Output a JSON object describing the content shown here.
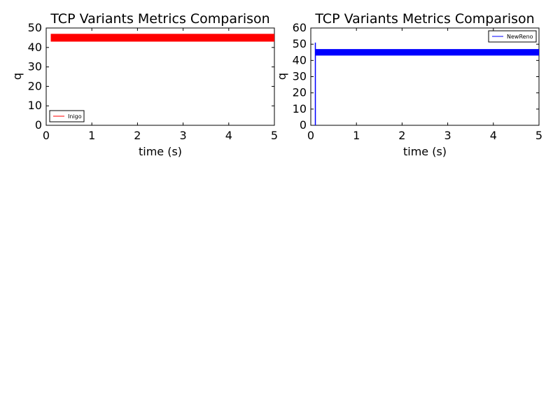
{
  "chart_data": [
    {
      "type": "line",
      "title": "TCP Variants Metrics Comparison",
      "xlabel": "time (s)",
      "ylabel": "q",
      "xlim": [
        0,
        5
      ],
      "ylim": [
        0,
        50
      ],
      "xticks": [
        "0",
        "1",
        "2",
        "3",
        "4",
        "5"
      ],
      "yticks": [
        "0",
        "10",
        "20",
        "30",
        "40",
        "50"
      ],
      "legend_position": "lower-left",
      "series": [
        {
          "name": "Inigo",
          "color": "#ff0000",
          "band_start_x": 0.1,
          "band_range_y": [
            43,
            47
          ]
        }
      ]
    },
    {
      "type": "line",
      "title": "TCP Variants Metrics Comparison",
      "xlabel": "time (s)",
      "ylabel": "q",
      "xlim": [
        0,
        5
      ],
      "ylim": [
        0,
        60
      ],
      "xticks": [
        "0",
        "1",
        "2",
        "3",
        "4",
        "5"
      ],
      "yticks": [
        "0",
        "10",
        "20",
        "30",
        "40",
        "50",
        "60"
      ],
      "legend_position": "top-right",
      "series": [
        {
          "name": "NewReno",
          "color": "#0000ff",
          "spike": {
            "x": 0.1,
            "y_from": 0,
            "y_to": 51
          },
          "band_start_x": 0.1,
          "band_range_y": [
            43,
            47
          ]
        }
      ]
    }
  ]
}
